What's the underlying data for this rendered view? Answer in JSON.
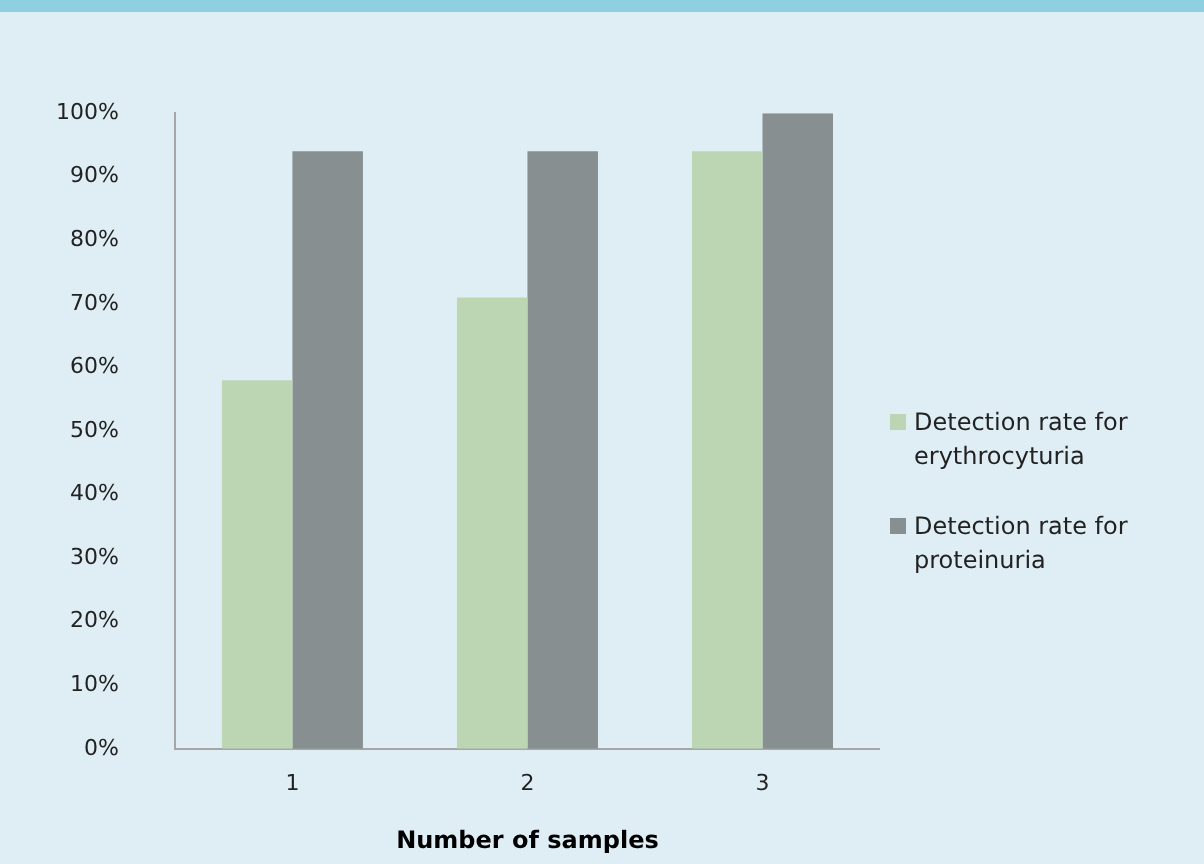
{
  "chart_data": {
    "type": "bar",
    "xlabel": "Number of samples",
    "categories": [
      "1",
      "2",
      "3"
    ],
    "series": [
      {
        "name": "Detection rate for erythrocyturia",
        "color": "#bcd6b4",
        "values": [
          58,
          71,
          94
        ]
      },
      {
        "name": "Detection rate for proteinuria",
        "color": "#888f91",
        "values": [
          94,
          94,
          100
        ]
      }
    ],
    "ylim": [
      0,
      100
    ],
    "yticks": [
      {
        "value": 0,
        "label": "0%"
      },
      {
        "value": 10,
        "label": "10%"
      },
      {
        "value": 20,
        "label": "20%"
      },
      {
        "value": 30,
        "label": "30%"
      },
      {
        "value": 40,
        "label": "40%"
      },
      {
        "value": 50,
        "label": "50%"
      },
      {
        "value": 60,
        "label": "60%"
      },
      {
        "value": 70,
        "label": "70%"
      },
      {
        "value": 80,
        "label": "80%"
      },
      {
        "value": 90,
        "label": "90%"
      },
      {
        "value": 100,
        "label": "100%"
      }
    ],
    "grid": false,
    "legend": "right"
  }
}
